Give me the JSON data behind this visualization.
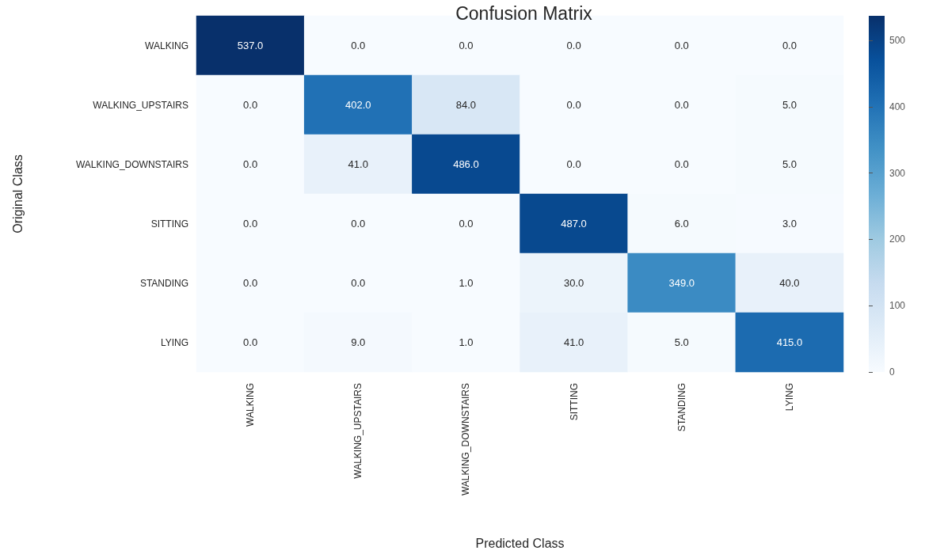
{
  "chart_data": {
    "type": "heatmap",
    "title": "Confusion Matrix",
    "xlabel": "Predicted Class",
    "ylabel": "Original Class",
    "categories": [
      "WALKING",
      "WALKING_UPSTAIRS",
      "WALKING_DOWNSTAIRS",
      "SITTING",
      "STANDING",
      "LYING"
    ],
    "y_categories": [
      "WALKING",
      "WALKING_UPSTAIRS",
      "WALKING_DOWNSTAIRS",
      "SITTING",
      "STANDING",
      "LYING"
    ],
    "cells": [
      [
        537,
        0,
        0,
        0,
        0,
        0
      ],
      [
        0,
        402,
        84,
        0,
        0,
        5
      ],
      [
        0,
        41,
        486,
        0,
        0,
        5
      ],
      [
        0,
        0,
        0,
        487,
        6,
        3
      ],
      [
        0,
        0,
        1,
        30,
        349,
        40
      ],
      [
        0,
        9,
        1,
        41,
        5,
        415
      ]
    ],
    "cell_labels": [
      [
        "537.0",
        "0.0",
        "0.0",
        "0.0",
        "0.0",
        "0.0"
      ],
      [
        "0.0",
        "402.0",
        "84.0",
        "0.0",
        "0.0",
        "5.0"
      ],
      [
        "0.0",
        "41.0",
        "486.0",
        "0.0",
        "0.0",
        "5.0"
      ],
      [
        "0.0",
        "0.0",
        "0.0",
        "487.0",
        "6.0",
        "3.0"
      ],
      [
        "0.0",
        "0.0",
        "1.0",
        "30.0",
        "349.0",
        "40.0"
      ],
      [
        "0.0",
        "9.0",
        "1.0",
        "41.0",
        "5.0",
        "415.0"
      ]
    ],
    "clim": [
      0,
      537
    ],
    "cticks": [
      0,
      100,
      200,
      300,
      400,
      500
    ]
  }
}
